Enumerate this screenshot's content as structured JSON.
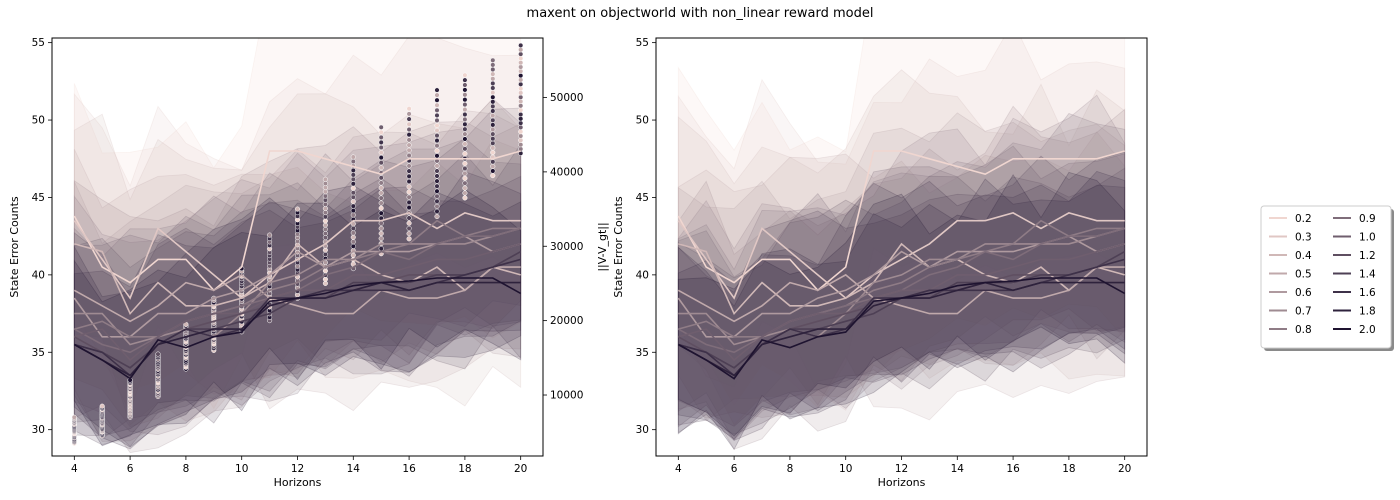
{
  "figure": {
    "title": "maxent on objectworld with non_linear reward model"
  },
  "colors": {
    "light": "#f0d6d0",
    "dark": "#1e1330",
    "axis": "#000000",
    "legend_edge": "#cccccc"
  },
  "legend": {
    "placement": "right-center",
    "columns": 2,
    "entries": [
      "0.2",
      "0.3",
      "0.4",
      "0.5",
      "0.6",
      "0.7",
      "0.8",
      "0.9",
      "1.0",
      "1.2",
      "1.4",
      "1.6",
      "1.8",
      "2.0"
    ]
  },
  "chart_data": [
    {
      "type": "line",
      "panel": "left",
      "xlabel": "Horizons",
      "ylabel": "State Error Counts",
      "y2label": "||V-V_gt||",
      "xlim": [
        3.2,
        20.8
      ],
      "ylim": [
        28.3,
        55.3
      ],
      "y2lim": [
        1800,
        58000
      ],
      "xticks": [
        4,
        6,
        8,
        10,
        12,
        14,
        16,
        18,
        20
      ],
      "yticks": [
        30,
        35,
        40,
        45,
        50,
        55
      ],
      "y2ticks": [
        10000,
        20000,
        30000,
        40000,
        50000
      ],
      "band_style": "shaded confidence band per series",
      "x": [
        4,
        5,
        6,
        7,
        8,
        9,
        10,
        11,
        12,
        13,
        14,
        15,
        16,
        17,
        18,
        19,
        20
      ],
      "series": [
        {
          "name": "0.2",
          "values": [
            43.8,
            40.5,
            39.5,
            41.0,
            41.0,
            39.0,
            40.5,
            48.0,
            48.0,
            47.5,
            47.0,
            46.5,
            47.5,
            47.5,
            47.5,
            47.5,
            48.0
          ]
        },
        {
          "name": "0.3",
          "values": [
            43.5,
            41.0,
            38.5,
            43.0,
            41.5,
            40.0,
            38.5,
            40.0,
            41.0,
            42.0,
            43.5,
            43.5,
            44.0,
            43.0,
            44.0,
            43.5,
            43.5
          ]
        },
        {
          "name": "0.4",
          "values": [
            42.0,
            41.5,
            37.5,
            39.5,
            38.0,
            38.0,
            38.5,
            39.5,
            42.0,
            40.5,
            41.0,
            40.0,
            39.5,
            40.5,
            39.0,
            40.5,
            40.0
          ]
        },
        {
          "name": "0.5",
          "values": [
            39.0,
            38.0,
            37.0,
            38.0,
            39.5,
            39.0,
            40.0,
            38.5,
            38.0,
            37.5,
            37.5,
            39.0,
            38.5,
            38.5,
            39.0,
            40.5,
            40.5
          ]
        },
        {
          "name": "0.6",
          "values": [
            38.5,
            36.0,
            36.0,
            37.5,
            37.5,
            38.5,
            39.0,
            40.0,
            41.5,
            40.5,
            41.5,
            41.5,
            41.5,
            42.0,
            42.5,
            41.5,
            42.0
          ]
        },
        {
          "name": "0.7",
          "values": [
            37.5,
            37.5,
            35.5,
            36.0,
            36.5,
            36.0,
            37.5,
            39.5,
            40.0,
            41.0,
            41.0,
            42.0,
            42.0,
            42.0,
            42.0,
            42.5,
            43.0
          ]
        },
        {
          "name": "0.8",
          "values": [
            36.5,
            37.0,
            36.0,
            36.0,
            37.0,
            37.5,
            38.0,
            39.0,
            39.5,
            40.5,
            41.0,
            41.5,
            42.0,
            43.5,
            42.5,
            43.0,
            43.0
          ]
        },
        {
          "name": "0.9",
          "values": [
            36.5,
            35.5,
            35.0,
            36.0,
            37.0,
            37.5,
            38.0,
            38.5,
            39.0,
            40.0,
            40.5,
            41.5,
            41.0,
            42.0,
            42.5,
            42.5,
            43.0
          ]
        },
        {
          "name": "1.0",
          "values": [
            36.0,
            36.5,
            34.5,
            36.0,
            37.0,
            37.5,
            37.5,
            38.5,
            39.0,
            39.0,
            40.0,
            40.0,
            40.5,
            41.0,
            41.0,
            41.5,
            42.0
          ]
        },
        {
          "name": "1.2",
          "values": [
            36.0,
            35.0,
            34.0,
            35.5,
            36.5,
            37.0,
            37.5,
            38.0,
            38.5,
            39.0,
            39.0,
            39.5,
            40.0,
            40.0,
            40.0,
            40.5,
            41.0
          ]
        },
        {
          "name": "1.4",
          "values": [
            35.5,
            35.0,
            34.0,
            35.5,
            36.5,
            36.5,
            37.0,
            37.5,
            38.5,
            38.5,
            39.5,
            39.5,
            39.5,
            40.0,
            40.0,
            40.5,
            41.5
          ]
        },
        {
          "name": "1.6",
          "values": [
            35.5,
            35.0,
            33.5,
            35.5,
            36.5,
            36.0,
            36.5,
            38.5,
            38.5,
            39.0,
            39.0,
            39.0,
            39.0,
            39.5,
            40.0,
            40.5,
            41.0
          ]
        },
        {
          "name": "1.8",
          "values": [
            35.5,
            34.5,
            33.5,
            35.5,
            36.0,
            36.5,
            36.5,
            38.0,
            38.5,
            38.5,
            39.0,
            39.5,
            39.0,
            39.5,
            39.5,
            39.5,
            39.5
          ]
        },
        {
          "name": "2.0",
          "values": [
            35.5,
            34.5,
            33.3,
            35.8,
            35.3,
            36.0,
            36.3,
            38.3,
            38.5,
            38.8,
            39.3,
            39.5,
            39.6,
            39.8,
            39.8,
            39.8,
            38.8
          ]
        }
      ],
      "scatter": {
        "axis": "right",
        "description_free": true,
        "x": [
          4,
          5,
          6,
          7,
          8,
          9,
          10,
          11,
          12,
          13,
          14,
          15,
          16,
          17,
          18,
          19,
          20
        ],
        "min": [
          3500,
          4500,
          7000,
          9800,
          13500,
          16000,
          18500,
          20000,
          23000,
          25000,
          27000,
          29000,
          31000,
          34000,
          36500,
          39500,
          42500
        ],
        "max": [
          7000,
          8500,
          12000,
          15500,
          19500,
          23000,
          27000,
          31500,
          35000,
          39000,
          42000,
          46000,
          48500,
          51000,
          53000,
          55000,
          57000
        ]
      }
    },
    {
      "type": "line",
      "panel": "right",
      "xlabel": "Horizons",
      "ylabel": "State Error Counts",
      "xlim": [
        3.2,
        20.8
      ],
      "ylim": [
        28.3,
        55.3
      ],
      "xticks": [
        4,
        6,
        8,
        10,
        12,
        14,
        16,
        18,
        20
      ],
      "yticks": [
        30,
        35,
        40,
        45,
        50,
        55
      ],
      "band_style": "shaded confidence band per series",
      "x": [
        4,
        5,
        6,
        7,
        8,
        9,
        10,
        11,
        12,
        13,
        14,
        15,
        16,
        17,
        18,
        19,
        20
      ],
      "series": [
        {
          "name": "0.2",
          "values": [
            43.8,
            40.5,
            39.5,
            41.0,
            41.0,
            39.0,
            40.5,
            48.0,
            48.0,
            47.5,
            47.0,
            46.5,
            47.5,
            47.5,
            47.5,
            47.5,
            48.0
          ]
        },
        {
          "name": "0.3",
          "values": [
            43.5,
            41.0,
            38.5,
            43.0,
            41.5,
            40.0,
            38.5,
            40.0,
            41.0,
            42.0,
            43.5,
            43.5,
            44.0,
            43.0,
            44.0,
            43.5,
            43.5
          ]
        },
        {
          "name": "0.4",
          "values": [
            42.0,
            41.5,
            37.5,
            39.5,
            38.0,
            38.0,
            38.5,
            39.5,
            42.0,
            40.5,
            41.0,
            40.0,
            39.5,
            40.5,
            39.0,
            40.5,
            40.0
          ]
        },
        {
          "name": "0.5",
          "values": [
            39.0,
            38.0,
            37.0,
            38.0,
            39.5,
            39.0,
            40.0,
            38.5,
            38.0,
            37.5,
            37.5,
            39.0,
            38.5,
            38.5,
            39.0,
            40.5,
            40.5
          ]
        },
        {
          "name": "0.6",
          "values": [
            38.5,
            36.0,
            36.0,
            37.5,
            37.5,
            38.5,
            39.0,
            40.0,
            41.5,
            40.5,
            41.5,
            41.5,
            41.5,
            42.0,
            42.5,
            41.5,
            42.0
          ]
        },
        {
          "name": "0.7",
          "values": [
            37.5,
            37.5,
            35.5,
            36.0,
            36.5,
            36.0,
            37.5,
            39.5,
            40.0,
            41.0,
            41.0,
            42.0,
            42.0,
            42.0,
            42.0,
            42.5,
            43.0
          ]
        },
        {
          "name": "0.8",
          "values": [
            36.5,
            37.0,
            36.0,
            36.0,
            37.0,
            37.5,
            38.0,
            39.0,
            39.5,
            40.5,
            41.0,
            41.5,
            42.0,
            43.5,
            42.5,
            43.0,
            43.0
          ]
        },
        {
          "name": "0.9",
          "values": [
            36.5,
            35.5,
            35.0,
            36.0,
            37.0,
            37.5,
            38.0,
            38.5,
            39.0,
            40.0,
            40.5,
            41.5,
            41.0,
            42.0,
            42.5,
            42.5,
            43.0
          ]
        },
        {
          "name": "1.0",
          "values": [
            36.0,
            36.5,
            34.5,
            36.0,
            37.0,
            37.5,
            37.5,
            38.5,
            39.0,
            39.0,
            40.0,
            40.0,
            40.5,
            41.0,
            41.0,
            41.5,
            42.0
          ]
        },
        {
          "name": "1.2",
          "values": [
            36.0,
            35.0,
            34.0,
            35.5,
            36.5,
            37.0,
            37.5,
            38.0,
            38.5,
            39.0,
            39.0,
            39.5,
            40.0,
            40.0,
            40.0,
            40.5,
            41.0
          ]
        },
        {
          "name": "1.4",
          "values": [
            35.5,
            35.0,
            34.0,
            35.5,
            36.5,
            36.5,
            37.0,
            37.5,
            38.5,
            38.5,
            39.5,
            39.5,
            39.5,
            40.0,
            40.0,
            40.5,
            41.5
          ]
        },
        {
          "name": "1.6",
          "values": [
            35.5,
            35.0,
            33.5,
            35.5,
            36.5,
            36.0,
            36.5,
            38.5,
            38.5,
            39.0,
            39.0,
            39.0,
            39.0,
            39.5,
            40.0,
            40.5,
            41.0
          ]
        },
        {
          "name": "1.8",
          "values": [
            35.5,
            34.5,
            33.5,
            35.5,
            36.0,
            36.5,
            36.5,
            38.0,
            38.5,
            38.5,
            39.0,
            39.5,
            39.0,
            39.5,
            39.5,
            39.5,
            39.5
          ]
        },
        {
          "name": "2.0",
          "values": [
            35.5,
            34.5,
            33.3,
            35.8,
            35.3,
            36.0,
            36.3,
            38.3,
            38.5,
            38.8,
            39.3,
            39.5,
            39.6,
            39.8,
            39.8,
            39.8,
            38.8
          ]
        }
      ]
    }
  ]
}
